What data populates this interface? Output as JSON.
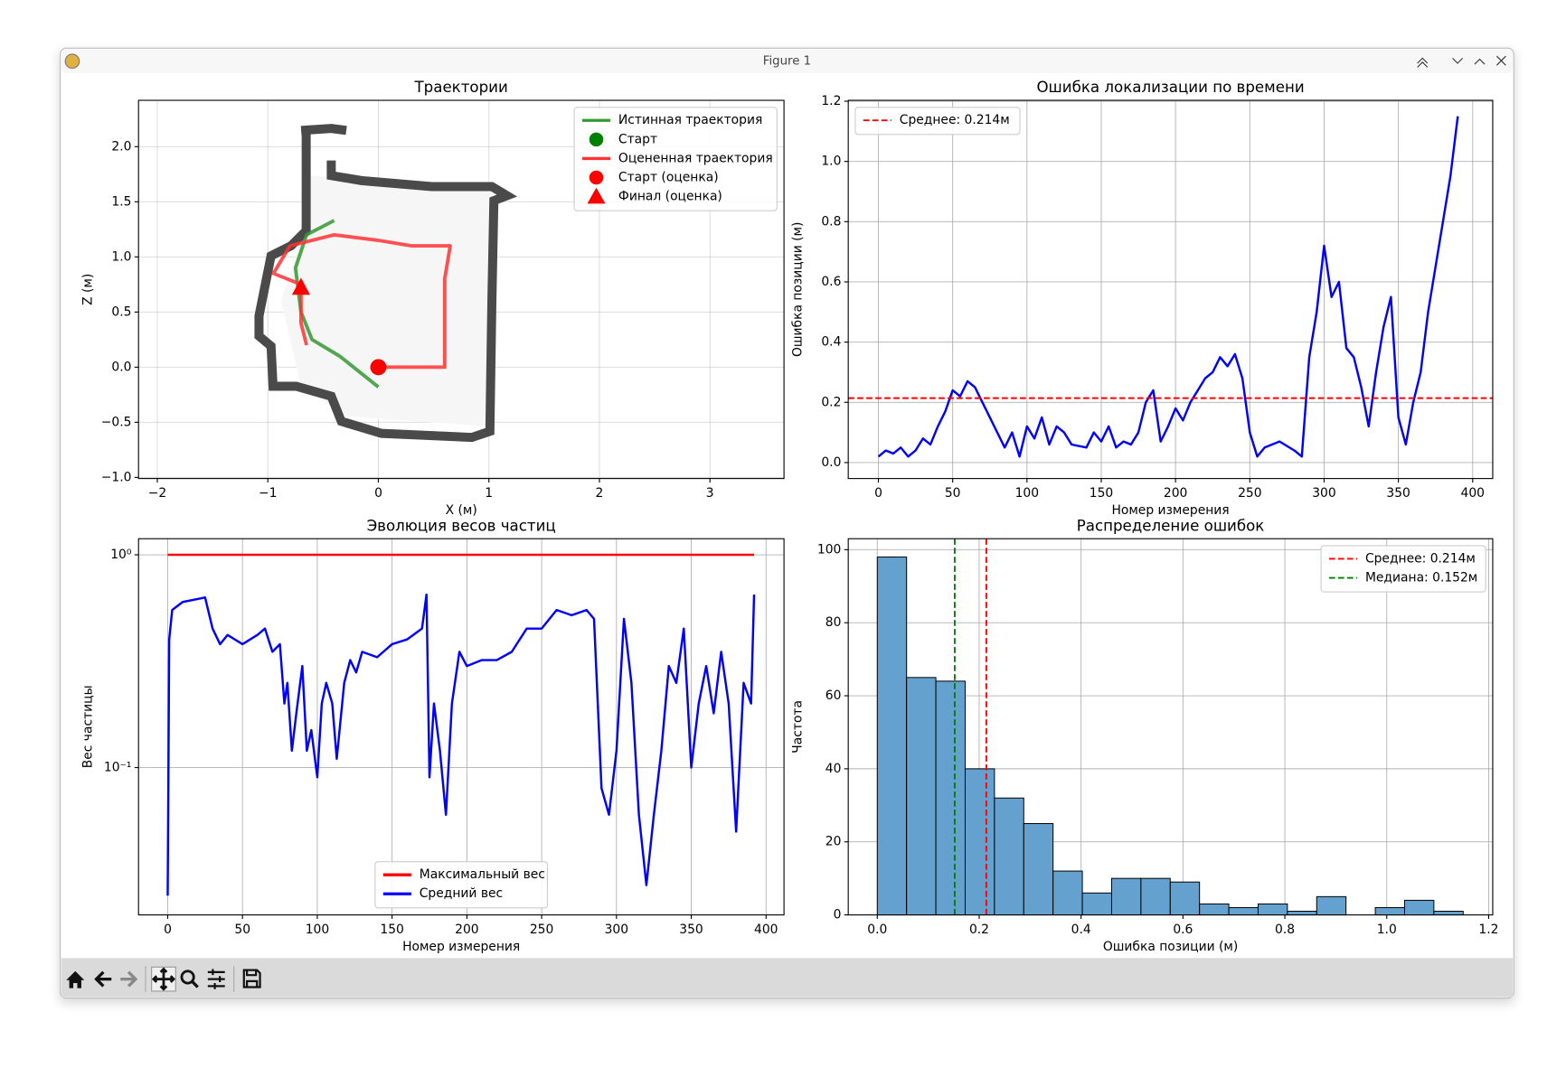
{
  "window": {
    "title": "Figure 1"
  },
  "chart_data": [
    {
      "type": "line",
      "title": "Траектории",
      "xlabel": "X (м)",
      "ylabel": "Z (м)",
      "xlim": [
        -2.17,
        3.67
      ],
      "ylim": [
        -1.01,
        2.42
      ],
      "xticks": [
        {
          "value": -2,
          "label": "−2"
        },
        {
          "value": -1,
          "label": "−1"
        },
        0,
        1,
        2,
        3
      ],
      "yticks": [
        {
          "value": -1.0,
          "label": "−1.0"
        },
        {
          "value": -0.5,
          "label": "−0.5"
        },
        {
          "value": 0.0,
          "label": "0.0"
        },
        0.5,
        {
          "value": 1.0,
          "label": "1.0"
        },
        1.5,
        {
          "value": 2.0,
          "label": "2.0"
        }
      ],
      "grid": true,
      "legend": "upper right",
      "series": [
        {
          "name": "Истинная траектория",
          "color": "#339933",
          "x": [
            0.0,
            -0.35,
            -0.6,
            -0.7,
            -0.75,
            -0.65,
            -0.4
          ],
          "values": [
            -0.18,
            0.1,
            0.25,
            0.5,
            0.9,
            1.2,
            1.33
          ]
        },
        {
          "name": "Старт",
          "color": "#008000",
          "marker": "circle",
          "x": [
            0.0
          ],
          "values": [
            0.0
          ]
        },
        {
          "name": "Оцененная траектория",
          "color": "#ff3333",
          "x": [
            0.0,
            0.3,
            0.6,
            0.6,
            0.6,
            0.65,
            0.3,
            0.0,
            -0.4,
            -0.8,
            -0.95,
            -0.7,
            -0.7,
            -0.65
          ],
          "values": [
            0.0,
            0.0,
            0.0,
            0.4,
            0.8,
            1.1,
            1.1,
            1.15,
            1.2,
            1.1,
            0.85,
            0.75,
            0.4,
            0.2
          ]
        },
        {
          "name": "Старт (оценка)",
          "color": "#ff0000",
          "marker": "circle",
          "x": [
            0.0
          ],
          "values": [
            0.0
          ]
        },
        {
          "name": "Финал (оценка)",
          "color": "#ff0000",
          "marker": "triangle",
          "x": [
            -0.7
          ],
          "values": [
            0.72
          ]
        }
      ]
    },
    {
      "type": "line",
      "title": "Ошибка локализации по времени",
      "xlabel": "Номер измерения",
      "ylabel": "Ошибка позиции (м)",
      "xlim": [
        -20.3,
        413.5
      ],
      "ylim": [
        -0.053,
        1.203
      ],
      "xticks": [
        0,
        50,
        100,
        150,
        200,
        250,
        300,
        350,
        400
      ],
      "yticks": [
        {
          "value": 0.0,
          "label": "0.0"
        },
        0.2,
        0.4,
        0.6,
        0.8,
        {
          "value": 1.0,
          "label": "1.0"
        },
        1.2
      ],
      "grid": true,
      "legend": "upper left",
      "hlines": [
        {
          "name": "Среднее: 0.214м",
          "value": 0.214,
          "color": "#ff0000"
        }
      ],
      "series": [
        {
          "color": "#0000ff",
          "x": [
            0,
            5,
            10,
            15,
            20,
            25,
            30,
            35,
            40,
            45,
            50,
            55,
            60,
            65,
            70,
            75,
            80,
            85,
            90,
            95,
            100,
            105,
            110,
            115,
            120,
            125,
            130,
            140,
            145,
            150,
            155,
            160,
            165,
            170,
            175,
            180,
            185,
            190,
            195,
            200,
            205,
            210,
            215,
            220,
            225,
            230,
            235,
            240,
            245,
            250,
            255,
            260,
            270,
            280,
            285,
            290,
            295,
            300,
            305,
            310,
            315,
            320,
            325,
            330,
            335,
            340,
            345,
            350,
            355,
            360,
            365,
            370,
            375,
            380,
            385,
            390
          ],
          "values": [
            0.02,
            0.04,
            0.03,
            0.05,
            0.02,
            0.04,
            0.08,
            0.06,
            0.12,
            0.17,
            0.24,
            0.22,
            0.27,
            0.25,
            0.2,
            0.15,
            0.1,
            0.05,
            0.1,
            0.02,
            0.12,
            0.08,
            0.15,
            0.06,
            0.12,
            0.1,
            0.06,
            0.05,
            0.1,
            0.07,
            0.12,
            0.05,
            0.07,
            0.06,
            0.1,
            0.2,
            0.24,
            0.07,
            0.12,
            0.18,
            0.14,
            0.2,
            0.24,
            0.28,
            0.3,
            0.35,
            0.32,
            0.36,
            0.28,
            0.1,
            0.02,
            0.05,
            0.07,
            0.04,
            0.02,
            0.35,
            0.5,
            0.72,
            0.55,
            0.6,
            0.38,
            0.35,
            0.25,
            0.12,
            0.3,
            0.45,
            0.55,
            0.15,
            0.06,
            0.2,
            0.3,
            0.5,
            0.65,
            0.8,
            0.95,
            1.15
          ]
        }
      ]
    },
    {
      "type": "line",
      "title": "Эволюция весов частиц",
      "xlabel": "Номер измерения",
      "ylabel": "Вес частицы",
      "xlim": [
        -19.5,
        412
      ],
      "ylim": [
        0.0203,
        1.19
      ],
      "ylog": true,
      "xticks": [
        0,
        50,
        100,
        150,
        200,
        250,
        300,
        350,
        400
      ],
      "yticks": [
        {
          "value": 1,
          "label": "10⁰"
        },
        {
          "value": 0.1,
          "label": "10⁻¹"
        }
      ],
      "grid": true,
      "legend": "lower center",
      "series": [
        {
          "name": "Максимальный вес",
          "color": "#ff0000",
          "x": [
            0,
            392
          ],
          "values": [
            1.0,
            1.0
          ]
        },
        {
          "name": "Средний вес",
          "color": "#0000ff",
          "x": [
            0,
            1,
            3,
            10,
            20,
            25,
            30,
            35,
            40,
            50,
            60,
            65,
            70,
            75,
            78,
            80,
            83,
            86,
            90,
            93,
            96,
            100,
            103,
            106,
            110,
            113,
            118,
            122,
            126,
            130,
            140,
            150,
            160,
            170,
            173,
            175,
            178,
            182,
            186,
            190,
            195,
            200,
            210,
            220,
            230,
            240,
            250,
            260,
            270,
            280,
            285,
            290,
            295,
            300,
            305,
            310,
            315,
            320,
            325,
            330,
            335,
            340,
            345,
            350,
            355,
            360,
            365,
            370,
            375,
            380,
            385,
            390,
            392
          ],
          "values": [
            0.025,
            0.4,
            0.55,
            0.6,
            0.62,
            0.63,
            0.45,
            0.38,
            0.42,
            0.38,
            0.42,
            0.45,
            0.35,
            0.38,
            0.2,
            0.25,
            0.12,
            0.18,
            0.3,
            0.12,
            0.15,
            0.09,
            0.2,
            0.25,
            0.2,
            0.11,
            0.25,
            0.32,
            0.28,
            0.35,
            0.33,
            0.38,
            0.4,
            0.45,
            0.65,
            0.09,
            0.2,
            0.12,
            0.06,
            0.2,
            0.35,
            0.3,
            0.32,
            0.32,
            0.35,
            0.45,
            0.45,
            0.55,
            0.52,
            0.55,
            0.5,
            0.08,
            0.06,
            0.12,
            0.5,
            0.25,
            0.06,
            0.028,
            0.06,
            0.12,
            0.3,
            0.25,
            0.45,
            0.1,
            0.2,
            0.3,
            0.18,
            0.35,
            0.2,
            0.05,
            0.25,
            0.2,
            0.65
          ]
        }
      ]
    },
    {
      "type": "histogram",
      "title": "Распределение ошибок",
      "xlabel": "Ошибка позиции (м)",
      "ylabel": "Частота",
      "xlim": [
        -0.057,
        1.208
      ],
      "ylim": [
        0,
        103
      ],
      "xticks": [
        {
          "value": 0.0,
          "label": "0.0"
        },
        0.2,
        0.4,
        0.6,
        0.8,
        {
          "value": 1.0,
          "label": "1.0"
        },
        1.2
      ],
      "yticks": [
        0,
        20,
        40,
        60,
        80,
        100
      ],
      "grid": true,
      "legend": "upper right",
      "color": "#64a1cf",
      "bins": [
        0,
        0.0575,
        0.115,
        0.1725,
        0.23,
        0.2875,
        0.345,
        0.4025,
        0.46,
        0.5175,
        0.575,
        0.6325,
        0.69,
        0.7475,
        0.805,
        0.8625,
        0.92,
        0.9775,
        1.035,
        1.0925,
        1.15
      ],
      "values": [
        98,
        65,
        64,
        40,
        32,
        25,
        12,
        6,
        10,
        10,
        9,
        3,
        2,
        3,
        1,
        5,
        0,
        2,
        4,
        1
      ],
      "vlines": [
        {
          "name": "Среднее: 0.214м",
          "value": 0.214,
          "color": "#ff0000"
        },
        {
          "name": "Медиана: 0.152м",
          "value": 0.152,
          "color": "#008000"
        }
      ]
    }
  ]
}
